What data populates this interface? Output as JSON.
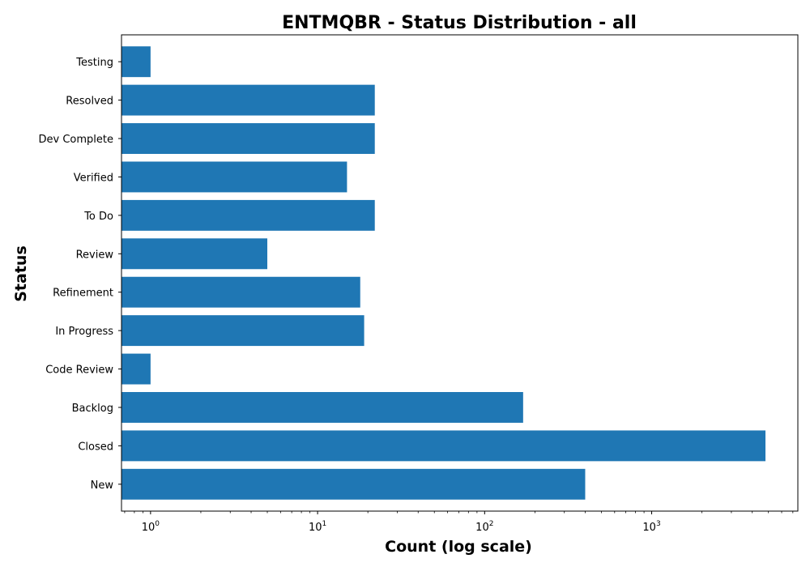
{
  "chart_data": {
    "type": "bar",
    "orientation": "horizontal",
    "title": "ENTMQBR - Status Distribution - all",
    "xlabel": "Count (log scale)",
    "ylabel": "Status",
    "xscale": "log",
    "xlim": [
      0.67,
      7500
    ],
    "x_ticks": [
      {
        "value": 1,
        "base": "10",
        "exp": "0"
      },
      {
        "value": 10,
        "base": "10",
        "exp": "1"
      },
      {
        "value": 100,
        "base": "10",
        "exp": "2"
      },
      {
        "value": 1000,
        "base": "10",
        "exp": "3"
      }
    ],
    "categories": [
      "New",
      "Closed",
      "Backlog",
      "Code Review",
      "In Progress",
      "Refinement",
      "Review",
      "To Do",
      "Verified",
      "Dev Complete",
      "Resolved",
      "Testing"
    ],
    "values": [
      400,
      4800,
      170,
      1,
      19,
      18,
      5,
      22,
      15,
      22,
      22,
      1
    ],
    "bar_color": "#1f77b4",
    "grid": false,
    "legend": "none"
  }
}
